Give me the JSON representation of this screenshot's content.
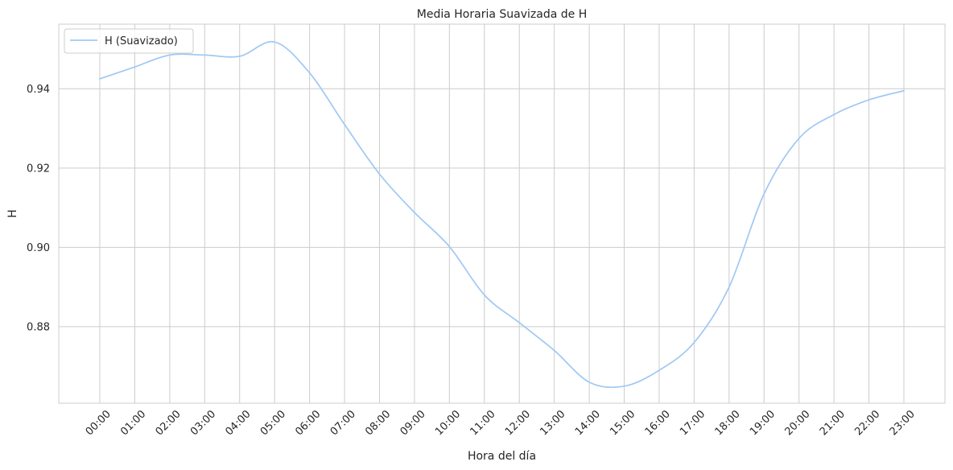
{
  "chart_data": {
    "type": "line",
    "title": "Media Horaria Suavizada de H",
    "xlabel": "Hora del día",
    "ylabel": "H",
    "categories": [
      "00:00",
      "01:00",
      "02:00",
      "03:00",
      "04:00",
      "05:00",
      "06:00",
      "07:00",
      "08:00",
      "09:00",
      "10:00",
      "11:00",
      "12:00",
      "13:00",
      "14:00",
      "15:00",
      "16:00",
      "17:00",
      "18:00",
      "19:00",
      "20:00",
      "21:00",
      "22:00",
      "23:00"
    ],
    "y_ticks": [
      "0.88",
      "0.90",
      "0.92",
      "0.94"
    ],
    "ylim": [
      0.8607,
      0.9563
    ],
    "grid": true,
    "legend_position": "top-left",
    "series": [
      {
        "name": "H (Suavizado)",
        "color": "#a1c9f4",
        "x": [
          0,
          1,
          2,
          3,
          4,
          5,
          6,
          7,
          8,
          9,
          10,
          11,
          12,
          13,
          14,
          15,
          16,
          17,
          18,
          19,
          20,
          21,
          22,
          23
        ],
        "values": [
          0.9425,
          0.9455,
          0.9485,
          0.9485,
          0.9482,
          0.9518,
          0.944,
          0.931,
          0.9185,
          0.9088,
          0.9002,
          0.888,
          0.881,
          0.874,
          0.866,
          0.865,
          0.869,
          0.876,
          0.89,
          0.9135,
          0.9275,
          0.9335,
          0.9372,
          0.9395
        ]
      }
    ]
  }
}
